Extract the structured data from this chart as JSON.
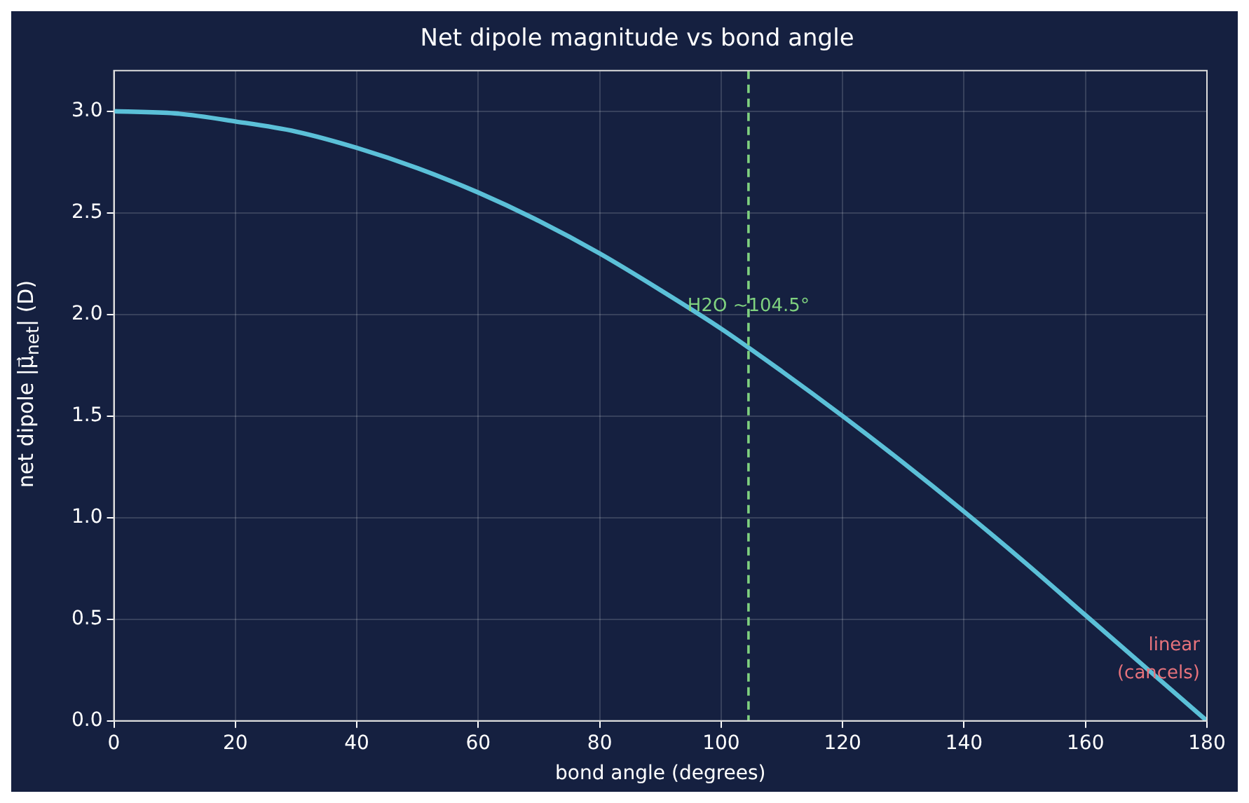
{
  "chart_data": {
    "type": "line",
    "title": "Net dipole magnitude vs bond angle",
    "xlabel": "bond angle (degrees)",
    "ylabel": "net dipole |μ⃗$_{net}$| (D)",
    "x": [
      0,
      10,
      20,
      30,
      40,
      50,
      60,
      70,
      80,
      90,
      100,
      110,
      120,
      130,
      140,
      150,
      160,
      170,
      180
    ],
    "series": [
      {
        "color": "#5bc0d8",
        "values": [
          3.0,
          2.99,
          2.95,
          2.9,
          2.82,
          2.72,
          2.6,
          2.46,
          2.3,
          2.12,
          1.93,
          1.72,
          1.5,
          1.27,
          1.03,
          0.78,
          0.52,
          0.26,
          0
        ]
      }
    ],
    "xlim": [
      0,
      180
    ],
    "xticks": [
      0,
      20,
      40,
      60,
      80,
      100,
      120,
      140,
      160,
      180
    ],
    "ylim": [
      0,
      3.2
    ],
    "yticks": [
      {
        "value": 0,
        "label": "0.0"
      },
      {
        "value": 0.5,
        "label": "0.5"
      },
      {
        "value": 1,
        "label": "1.0"
      },
      {
        "value": 1.5,
        "label": "1.5"
      },
      {
        "value": 2,
        "label": "2.0"
      },
      {
        "value": 2.5,
        "label": "2.5"
      },
      {
        "value": 3,
        "label": "3.0"
      }
    ],
    "ref_lines": [
      {
        "axis": "x",
        "value": 104.5,
        "label": "H2O ~104.5°",
        "color": "#7fd17f",
        "line_style": "dashed"
      }
    ],
    "annotations": [
      "linear\n(cancels)"
    ],
    "grid": true,
    "legend": false,
    "marker": "none",
    "line_style": "solid"
  }
}
